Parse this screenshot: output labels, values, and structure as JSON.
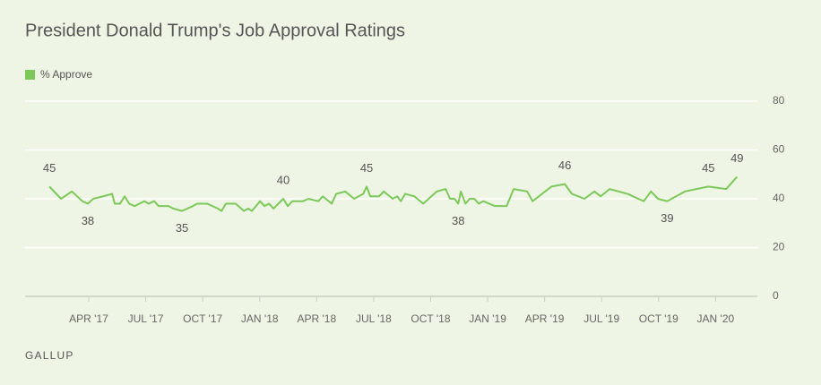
{
  "chart_data": {
    "type": "line",
    "title": "President Donald Trump's Job Approval Ratings",
    "source": "GALLUP",
    "legend": "top-left",
    "grid": true,
    "xlim": [
      -0.35,
      38.2
    ],
    "xticks": [
      {
        "value": 3,
        "label": "APR '17"
      },
      {
        "value": 6,
        "label": "JUL '17"
      },
      {
        "value": 9,
        "label": "OCT '17"
      },
      {
        "value": 12,
        "label": "JAN '18"
      },
      {
        "value": 15,
        "label": "APR '18"
      },
      {
        "value": 18,
        "label": "JUL '18"
      },
      {
        "value": 21,
        "label": "OCT '18"
      },
      {
        "value": 24,
        "label": "JAN '19"
      },
      {
        "value": 27,
        "label": "APR '19"
      },
      {
        "value": 30,
        "label": "JUL '19"
      },
      {
        "value": 33,
        "label": "OCT '19"
      },
      {
        "value": 36,
        "label": "JAN '20"
      }
    ],
    "ylim": [
      0,
      80
    ],
    "yticks": [
      0,
      20,
      40,
      60,
      80
    ],
    "x": [
      0.93,
      1.54,
      2.11,
      2.67,
      2.95,
      3.24,
      3.76,
      4.23,
      4.37,
      4.65,
      4.89,
      5.13,
      5.41,
      5.93,
      6.16,
      6.45,
      6.68,
      7.2,
      7.44,
      7.91,
      8.48,
      8.71,
      9.23,
      9.8,
      9.99,
      10.22,
      10.74,
      11.17,
      11.4,
      11.59,
      12.02,
      12.25,
      12.49,
      12.73,
      13.24,
      13.48,
      13.72,
      14.28,
      14.57,
      15.09,
      15.32,
      15.79,
      16.03,
      16.5,
      16.97,
      17.45,
      17.63,
      17.82,
      18.29,
      18.53,
      19.0,
      19.24,
      19.43,
      19.66,
      20.14,
      20.61,
      21.32,
      21.79,
      22.02,
      22.26,
      22.45,
      22.59,
      22.83,
      23.06,
      23.3,
      23.53,
      23.77,
      24.38,
      25.0,
      25.37,
      26.08,
      26.37,
      27.03,
      27.36,
      28.06,
      28.44,
      29.1,
      29.62,
      29.95,
      30.42,
      31.37,
      32.22,
      32.6,
      32.97,
      33.45,
      34.39,
      35.62,
      36.56,
      37.13
    ],
    "series": [
      {
        "name": "% Approve",
        "color": "#7cc95a",
        "values": [
          45,
          40,
          43,
          39,
          38,
          40,
          41,
          42,
          38,
          38,
          41,
          38,
          37,
          39,
          38,
          39,
          37,
          37,
          36,
          35,
          37,
          38,
          38,
          36,
          35,
          38,
          38,
          35,
          36,
          35,
          39,
          37,
          38,
          36,
          40,
          37,
          39,
          39,
          40,
          39,
          41,
          38,
          42,
          43,
          40,
          42,
          45,
          41,
          41,
          43,
          40,
          41,
          39,
          42,
          41,
          38,
          43,
          44,
          40,
          40,
          38,
          43,
          38,
          40,
          40,
          38,
          39,
          37,
          37,
          44,
          43,
          39,
          43,
          45,
          46,
          42,
          40,
          43,
          41,
          44,
          42,
          39,
          43,
          40,
          39,
          43,
          45,
          44,
          49
        ],
        "value_labels": [
          "45",
          null,
          null,
          null,
          "38",
          null,
          null,
          null,
          null,
          null,
          null,
          null,
          null,
          null,
          null,
          null,
          null,
          null,
          null,
          "35",
          null,
          null,
          null,
          null,
          null,
          null,
          null,
          null,
          null,
          null,
          null,
          null,
          null,
          null,
          "40",
          null,
          null,
          null,
          null,
          null,
          null,
          null,
          null,
          null,
          null,
          null,
          "45",
          null,
          null,
          null,
          null,
          null,
          null,
          null,
          null,
          null,
          null,
          null,
          null,
          null,
          "38",
          null,
          null,
          null,
          null,
          null,
          null,
          null,
          null,
          null,
          null,
          null,
          null,
          null,
          "46",
          null,
          null,
          null,
          null,
          null,
          null,
          null,
          null,
          null,
          "39",
          null,
          "45",
          null,
          "49"
        ]
      }
    ]
  }
}
